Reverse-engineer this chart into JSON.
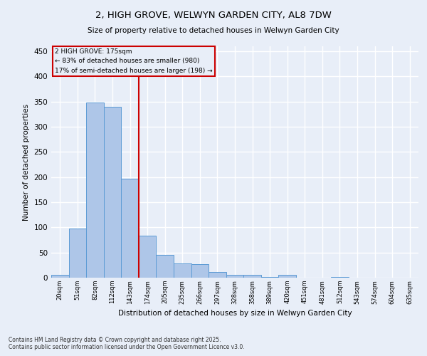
{
  "title": "2, HIGH GROVE, WELWYN GARDEN CITY, AL8 7DW",
  "subtitle": "Size of property relative to detached houses in Welwyn Garden City",
  "xlabel": "Distribution of detached houses by size in Welwyn Garden City",
  "ylabel": "Number of detached properties",
  "categories": [
    "20sqm",
    "51sqm",
    "82sqm",
    "112sqm",
    "143sqm",
    "174sqm",
    "205sqm",
    "235sqm",
    "266sqm",
    "297sqm",
    "328sqm",
    "358sqm",
    "389sqm",
    "420sqm",
    "451sqm",
    "481sqm",
    "512sqm",
    "543sqm",
    "574sqm",
    "604sqm",
    "635sqm"
  ],
  "values": [
    5,
    98,
    348,
    340,
    197,
    84,
    46,
    29,
    27,
    11,
    6,
    5,
    1,
    5,
    0,
    0,
    1,
    0,
    0,
    0,
    0
  ],
  "bar_color": "#aec6e8",
  "bar_edge_color": "#5b9bd5",
  "reference_line_x": 5,
  "reference_line_label": "2 HIGH GROVE: 175sqm",
  "annotation_line1": "← 83% of detached houses are smaller (980)",
  "annotation_line2": "17% of semi-detached houses are larger (198) →",
  "annotation_box_color": "#cc0000",
  "background_color": "#e8eef8",
  "grid_color": "#ffffff",
  "footer1": "Contains HM Land Registry data © Crown copyright and database right 2025.",
  "footer2": "Contains public sector information licensed under the Open Government Licence v3.0.",
  "ylim": [
    0,
    460
  ],
  "yticks": [
    0,
    50,
    100,
    150,
    200,
    250,
    300,
    350,
    400,
    450
  ]
}
